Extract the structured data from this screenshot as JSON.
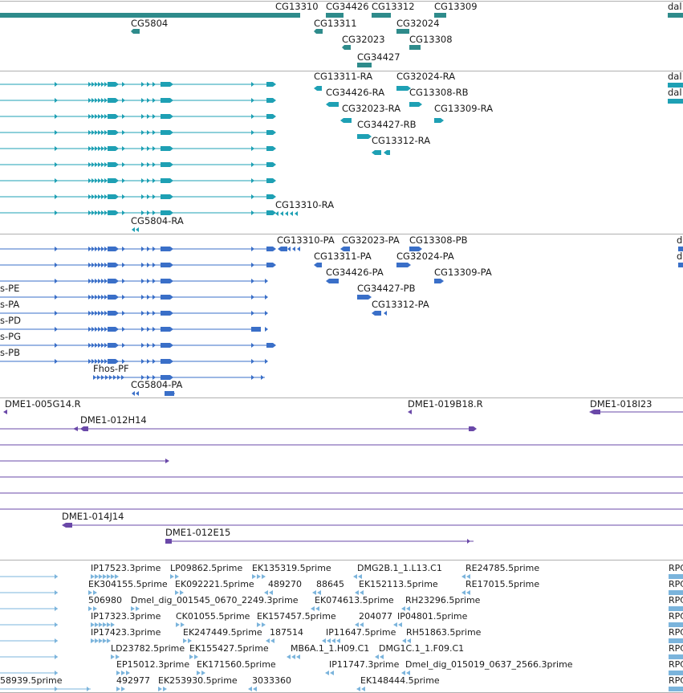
{
  "browser": {
    "tracks": [
      {
        "name": "genes",
        "color": "#2e8b8b"
      },
      {
        "name": "transcripts-ra",
        "color": "#1ea0b4"
      },
      {
        "name": "transcripts-pa",
        "color": "#3a6fc8"
      },
      {
        "name": "clones",
        "color": "#6a48a8"
      },
      {
        "name": "ests",
        "color": "#7bb4dc"
      }
    ],
    "genes_track": {
      "labels": [
        "CG13310",
        "CG34426",
        "CG13312",
        "CG13309",
        "dal",
        "CG5804",
        "CG13311",
        "CG32024",
        "CG32023",
        "CG13308",
        "CG34427"
      ]
    },
    "transcripts_ra_track": {
      "labels": [
        "CG13311-RA",
        "CG32024-RA",
        "dal",
        "CG34426-RA",
        "CG13308-RB",
        "dal",
        "CG32023-RA",
        "CG13309-RA",
        "CG34427-RB",
        "CG13312-RA",
        "CG13310-RA",
        "CG5804-RA"
      ]
    },
    "transcripts_pa_track": {
      "labels": [
        "CG13310-PA",
        "CG32023-PA",
        "CG13308-PB",
        "d",
        "CG13311-PA",
        "CG32024-PA",
        "d",
        "s-PE",
        "CG34426-PA",
        "CG13309-PA",
        "s-PA",
        "CG34427-PB",
        "s-PD",
        "CG13312-PA",
        "s-PG",
        "s-PB",
        "Fhos-PF",
        "CG5804-PA"
      ]
    },
    "clones_track": {
      "labels": [
        "DME1-005G14.R",
        "DME1-019B18.R",
        "DME1-018I23",
        "DME1-012H14",
        "DME1-014J14",
        "DME1-012E15"
      ]
    },
    "ests_track": {
      "labels": [
        "IP17523.3prime",
        "LP09862.5prime",
        "EK135319.5prime",
        "DMG2B.1_1.L13.C1",
        "RE24785.5prime",
        "RPC",
        "EK304155.5prime",
        "EK092221.5prime",
        "489270",
        "88645",
        "EK152113.5prime",
        "RE17015.5prime",
        "RPC",
        "506980",
        "Dmel_dig_001545_0670_2249.3prime",
        "EK074613.5prime",
        "RH23296.5prime",
        "RPC",
        "IP17323.3prime",
        "CK01055.5prime",
        "EK157457.5prime",
        "204077",
        "IP04801.5prime",
        "RPC",
        "IP17423.3prime",
        "EK247449.5prime",
        "187514",
        "IP11647.5prime",
        "RH51863.5prime",
        "RPC",
        "LD23782.5prime",
        "EK155427.5prime",
        "MB6A.1_1.H09.C1",
        "DMG1C.1_1.F09.C1",
        "RPC",
        "EP15012.3prime",
        "EK171560.5prime",
        "IP11747.3prime",
        "Dmel_dig_015019_0637_2566.3prime",
        "RPC",
        "58939.5prime",
        "492977",
        "EK253930.5prime",
        "3033360",
        "EK148444.5prime",
        "RPC"
      ]
    }
  }
}
